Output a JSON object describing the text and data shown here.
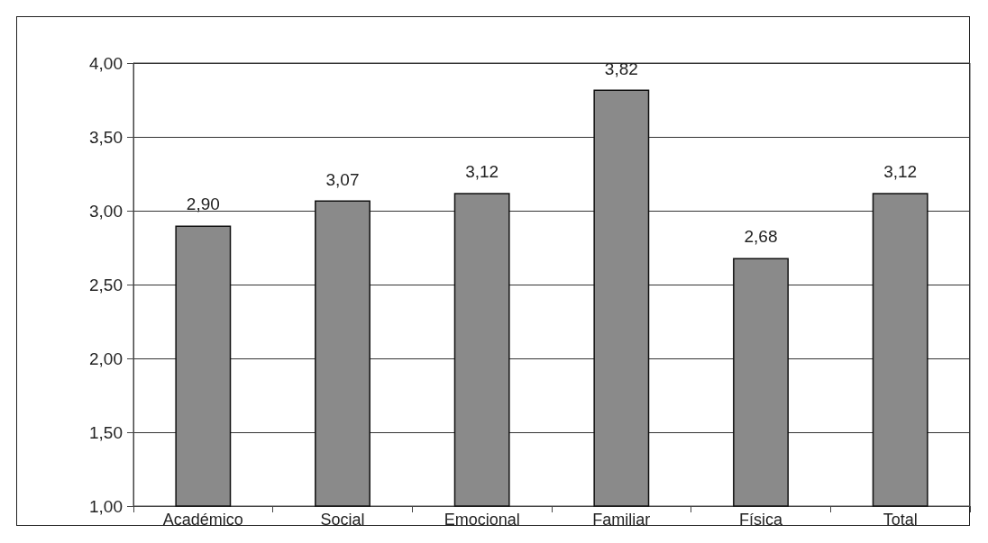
{
  "chart_data": {
    "type": "bar",
    "categories": [
      "Académico",
      "Social",
      "Emocional",
      "Familiar",
      "Física",
      "Total"
    ],
    "values": [
      2.9,
      3.07,
      3.12,
      3.82,
      2.68,
      3.12
    ],
    "value_labels": [
      "2,90",
      "3,07",
      "3,12",
      "3,82",
      "2,68",
      "3,12"
    ],
    "color": "#8a8a8a",
    "ylim": [
      1,
      4
    ],
    "yticks": [
      {
        "value": 1,
        "label": "1,00"
      },
      {
        "value": 1.5,
        "label": "1,50"
      },
      {
        "value": 2,
        "label": "2,00"
      },
      {
        "value": 2.5,
        "label": "2,50"
      },
      {
        "value": 3,
        "label": "3,00"
      },
      {
        "value": 3.5,
        "label": "3,50"
      },
      {
        "value": 4,
        "label": "4,00"
      }
    ],
    "grid": "y"
  }
}
